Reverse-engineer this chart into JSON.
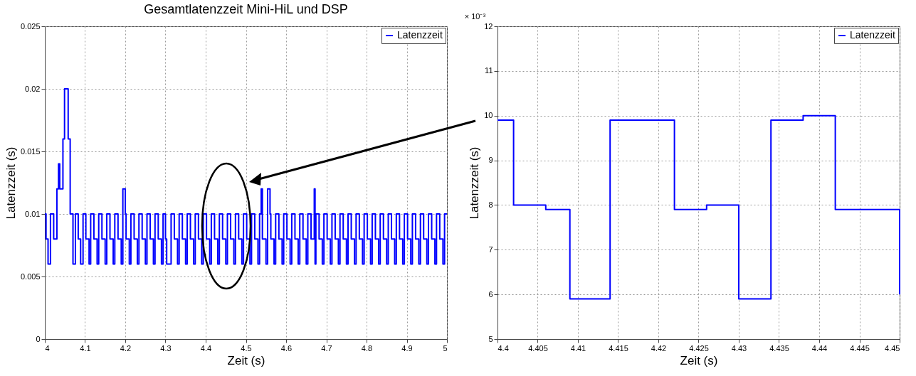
{
  "chart_data": [
    {
      "type": "step",
      "title": "Gesamtlatenzzeit Mini-HiL und DSP",
      "xlabel": "Zeit (s)",
      "ylabel": "Latenzzeit (s)",
      "xlim": [
        4,
        5
      ],
      "xticks": [
        4,
        4.1,
        4.2,
        4.3,
        4.4,
        4.5,
        4.6,
        4.7,
        4.8,
        4.9,
        5
      ],
      "ylim": [
        0,
        0.025
      ],
      "yticks": [
        0,
        0.005,
        0.01,
        0.015,
        0.02,
        0.025
      ],
      "grid": true,
      "legend": "top right",
      "marker": "none",
      "line_style": "solid",
      "series": [
        {
          "name": "Latenzzeit",
          "color": "#0000ff",
          "x": [
            4,
            4.003,
            4.008,
            4.014,
            4.022,
            4.03,
            4.034,
            4.037,
            4.045,
            4.049,
            4.058,
            4.063,
            4.07,
            4.076,
            4.083,
            4.089,
            4.095,
            4.102,
            4.11,
            4.114,
            4.122,
            4.13,
            4.134,
            4.142,
            4.15,
            4.154,
            4.162,
            4.17,
            4.174,
            4.182,
            4.19,
            4.194,
            4.2,
            4.202,
            4.21,
            4.214,
            4.222,
            4.23,
            4.234,
            4.242,
            4.25,
            4.254,
            4.262,
            4.27,
            4.274,
            4.282,
            4.29,
            4.294,
            4.3,
            4.303,
            4.314,
            4.322,
            4.33,
            4.334,
            4.342,
            4.35,
            4.354,
            4.362,
            4.37,
            4.374,
            4.382,
            4.39,
            4.394,
            4.402,
            4.41,
            4.414,
            4.422,
            4.43,
            4.434,
            4.442,
            4.45,
            4.454,
            4.462,
            4.47,
            4.474,
            4.482,
            4.49,
            4.494,
            4.502,
            4.51,
            4.514,
            4.522,
            4.53,
            4.534,
            4.538,
            4.541,
            4.55,
            4.554,
            4.56,
            4.562,
            4.57,
            4.574,
            4.582,
            4.59,
            4.594,
            4.602,
            4.61,
            4.614,
            4.622,
            4.63,
            4.634,
            4.642,
            4.65,
            4.654,
            4.662,
            4.67,
            4.672,
            4.674,
            4.682,
            4.69,
            4.694,
            4.702,
            4.71,
            4.714,
            4.722,
            4.73,
            4.734,
            4.742,
            4.75,
            4.754,
            4.762,
            4.77,
            4.774,
            4.782,
            4.79,
            4.794,
            4.802,
            4.81,
            4.814,
            4.822,
            4.83,
            4.834,
            4.842,
            4.85,
            4.854,
            4.862,
            4.87,
            4.874,
            4.882,
            4.89,
            4.894,
            4.902,
            4.91,
            4.914,
            4.922,
            4.93,
            4.934,
            4.942,
            4.95,
            4.954,
            4.962,
            4.97,
            4.974,
            4.982,
            4.99,
            4.994,
            5
          ],
          "values": [
            0.01,
            0.008,
            0.006,
            0.01,
            0.008,
            0.012,
            0.014,
            0.012,
            0.016,
            0.02,
            0.016,
            0.01,
            0.006,
            0.01,
            0.008,
            0.006,
            0.01,
            0.008,
            0.006,
            0.01,
            0.008,
            0.006,
            0.01,
            0.008,
            0.006,
            0.01,
            0.008,
            0.006,
            0.01,
            0.008,
            0.006,
            0.012,
            0.01,
            0.008,
            0.006,
            0.01,
            0.008,
            0.006,
            0.01,
            0.008,
            0.006,
            0.01,
            0.008,
            0.006,
            0.01,
            0.008,
            0.006,
            0.01,
            0.008,
            0.006,
            0.01,
            0.008,
            0.006,
            0.01,
            0.008,
            0.006,
            0.01,
            0.008,
            0.006,
            0.01,
            0.008,
            0.006,
            0.01,
            0.008,
            0.006,
            0.01,
            0.008,
            0.006,
            0.01,
            0.008,
            0.006,
            0.01,
            0.008,
            0.006,
            0.01,
            0.008,
            0.006,
            0.01,
            0.008,
            0.006,
            0.01,
            0.008,
            0.006,
            0.01,
            0.012,
            0.008,
            0.006,
            0.012,
            0.01,
            0.008,
            0.006,
            0.01,
            0.008,
            0.006,
            0.01,
            0.008,
            0.006,
            0.01,
            0.008,
            0.006,
            0.01,
            0.008,
            0.006,
            0.01,
            0.008,
            0.012,
            0.006,
            0.01,
            0.008,
            0.006,
            0.01,
            0.008,
            0.006,
            0.01,
            0.008,
            0.006,
            0.01,
            0.008,
            0.006,
            0.01,
            0.008,
            0.006,
            0.01,
            0.008,
            0.006,
            0.01,
            0.008,
            0.006,
            0.01,
            0.008,
            0.006,
            0.01,
            0.008,
            0.006,
            0.01,
            0.008,
            0.006,
            0.01,
            0.008,
            0.006,
            0.01,
            0.008,
            0.006,
            0.01,
            0.008,
            0.006,
            0.01,
            0.008,
            0.006,
            0.01,
            0.008,
            0.006,
            0.01,
            0.008,
            0.006,
            0.01,
            0.01
          ]
        }
      ]
    },
    {
      "type": "step",
      "xlabel": "Zeit (s)",
      "ylabel": "Latenzzeit (s)",
      "annotations": [
        "× 10⁻³"
      ],
      "xlim": [
        4.4,
        4.45
      ],
      "xticks": [
        4.4,
        4.405,
        4.41,
        4.415,
        4.42,
        4.425,
        4.43,
        4.435,
        4.44,
        4.445,
        4.45
      ],
      "ylim": [
        5,
        12
      ],
      "yticks": [
        5,
        6,
        7,
        8,
        9,
        10,
        11,
        12
      ],
      "grid": true,
      "legend": "top right",
      "marker": "none",
      "line_style": "solid",
      "series": [
        {
          "name": "Latenzzeit",
          "color": "#0000ff",
          "x": [
            4.4,
            4.402,
            4.406,
            4.409,
            4.414,
            4.422,
            4.426,
            4.43,
            4.434,
            4.438,
            4.442,
            4.45
          ],
          "values": [
            9.9,
            8.0,
            7.9,
            5.9,
            9.9,
            7.9,
            8.0,
            5.9,
            9.9,
            10.0,
            7.9,
            6.0
          ]
        }
      ]
    }
  ]
}
